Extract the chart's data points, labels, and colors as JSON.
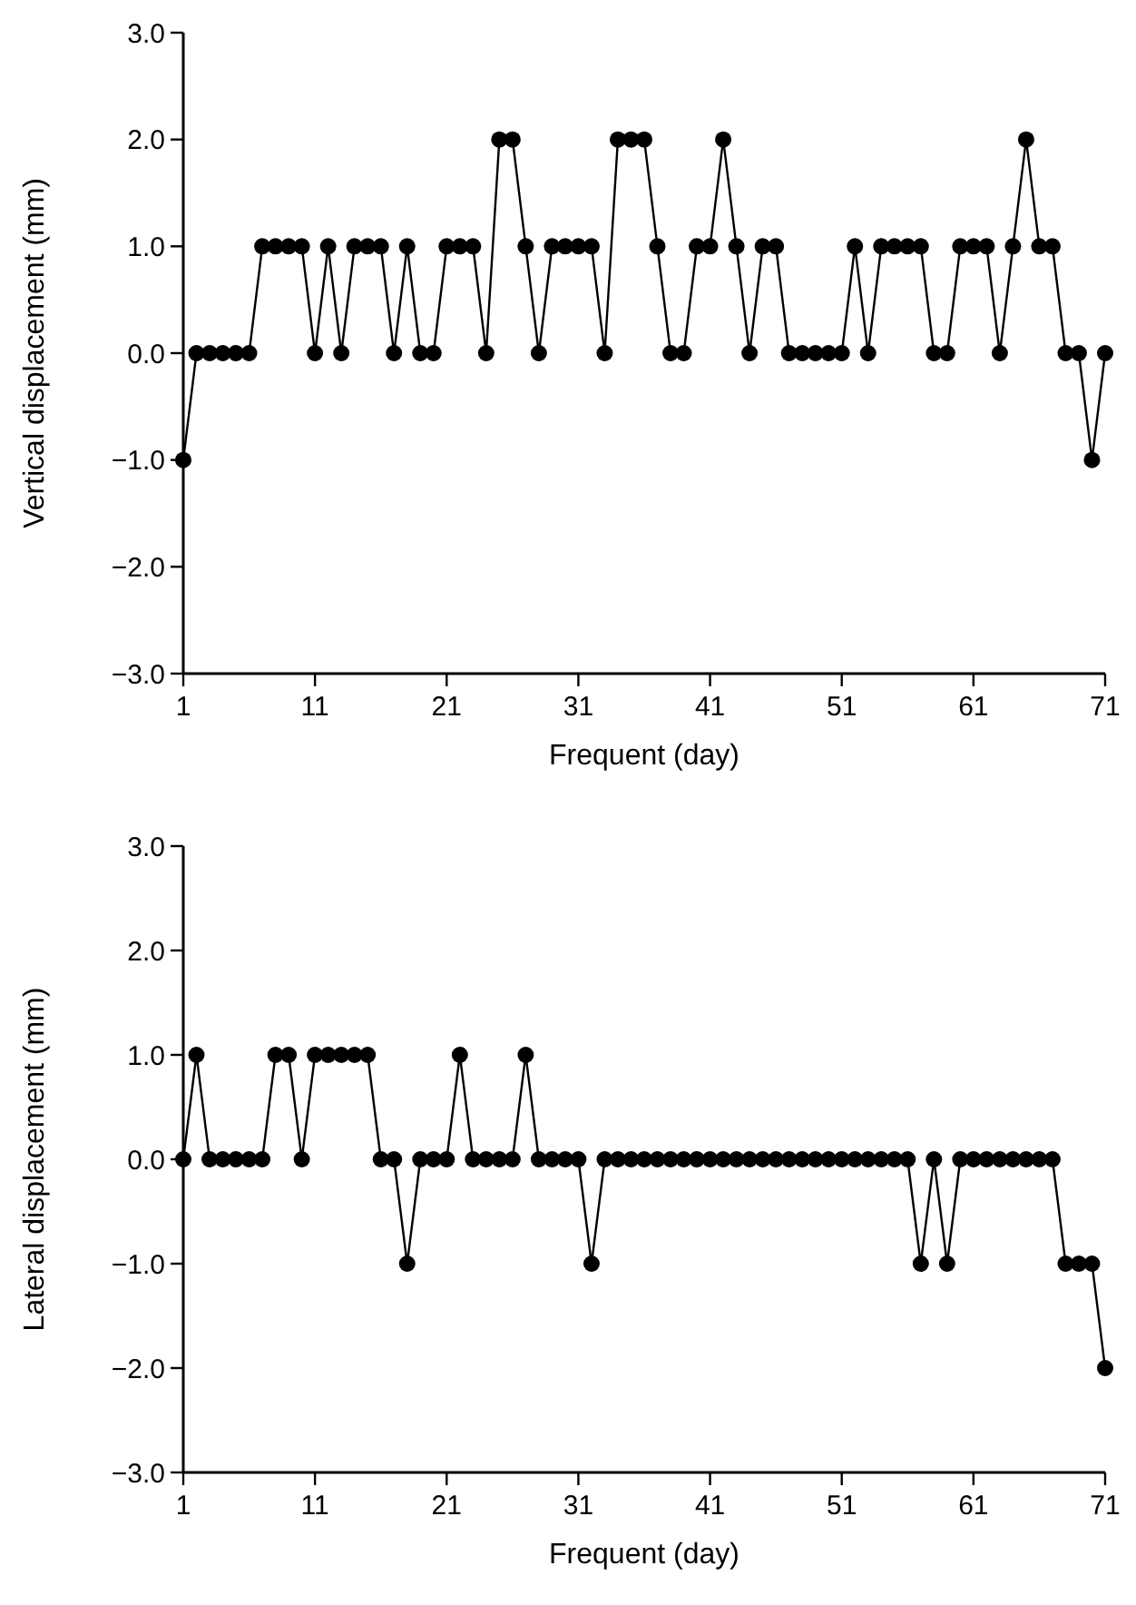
{
  "chart_data": [
    {
      "type": "line",
      "xlabel": "Frequent (day)",
      "ylabel": "Vertical displacement (mm)",
      "marker": "circle",
      "x": [
        1,
        2,
        3,
        4,
        5,
        6,
        7,
        8,
        9,
        10,
        11,
        12,
        13,
        14,
        15,
        16,
        17,
        18,
        19,
        20,
        21,
        22,
        23,
        24,
        25,
        26,
        27,
        28,
        29,
        30,
        31,
        32,
        33,
        34,
        35,
        36,
        37,
        38,
        39,
        40,
        41,
        42,
        43,
        44,
        45,
        46,
        47,
        48,
        49,
        50,
        51,
        52,
        53,
        54,
        55,
        56,
        57,
        58,
        59,
        60,
        61,
        62,
        63,
        64,
        65,
        66,
        67,
        68,
        69,
        70,
        71
      ],
      "series": [
        {
          "color": "#000000",
          "values": [
            -1,
            0,
            0,
            0,
            0,
            0,
            1,
            1,
            1,
            1,
            0,
            1,
            0,
            1,
            1,
            1,
            0,
            1,
            0,
            0,
            1,
            1,
            1,
            0,
            2,
            2,
            1,
            0,
            1,
            1,
            1,
            1,
            0,
            2,
            2,
            2,
            1,
            0,
            0,
            1,
            1,
            2,
            1,
            0,
            1,
            1,
            0,
            0,
            0,
            0,
            0,
            1,
            0,
            1,
            1,
            1,
            1,
            0,
            0,
            1,
            1,
            1,
            0,
            1,
            2,
            1,
            1,
            0,
            0,
            -1,
            0
          ]
        }
      ],
      "xlim": [
        1,
        71
      ],
      "xticks": [
        1,
        11,
        21,
        31,
        41,
        51,
        61,
        71
      ],
      "ylim": [
        -3,
        3
      ],
      "yticks": [
        {
          "value": 3,
          "label": "3.0"
        },
        {
          "value": 2,
          "label": "2.0"
        },
        {
          "value": 1,
          "label": "1.0"
        },
        {
          "value": 0,
          "label": "0.0"
        },
        {
          "value": -1,
          "label": "−1.0"
        },
        {
          "value": -2,
          "label": "−2.0"
        },
        {
          "value": -3,
          "label": "−3.0"
        }
      ]
    },
    {
      "type": "line",
      "xlabel": "Frequent (day)",
      "ylabel": "Lateral displacement (mm)",
      "marker": "circle",
      "x": [
        1,
        2,
        3,
        4,
        5,
        6,
        7,
        8,
        9,
        10,
        11,
        12,
        13,
        14,
        15,
        16,
        17,
        18,
        19,
        20,
        21,
        22,
        23,
        24,
        25,
        26,
        27,
        28,
        29,
        30,
        31,
        32,
        33,
        34,
        35,
        36,
        37,
        38,
        39,
        40,
        41,
        42,
        43,
        44,
        45,
        46,
        47,
        48,
        49,
        50,
        51,
        52,
        53,
        54,
        55,
        56,
        57,
        58,
        59,
        60,
        61,
        62,
        63,
        64,
        65,
        66,
        67,
        68,
        69,
        70,
        71
      ],
      "series": [
        {
          "color": "#000000",
          "values": [
            0,
            1,
            0,
            0,
            0,
            0,
            0,
            1,
            1,
            0,
            1,
            1,
            1,
            1,
            1,
            0,
            0,
            -1,
            0,
            0,
            0,
            1,
            0,
            0,
            0,
            0,
            1,
            0,
            0,
            0,
            0,
            -1,
            0,
            0,
            0,
            0,
            0,
            0,
            0,
            0,
            0,
            0,
            0,
            0,
            0,
            0,
            0,
            0,
            0,
            0,
            0,
            0,
            0,
            0,
            0,
            0,
            -1,
            0,
            -1,
            0,
            0,
            0,
            0,
            0,
            0,
            0,
            0,
            -1,
            -1,
            -1,
            -2
          ]
        }
      ],
      "xlim": [
        1,
        71
      ],
      "xticks": [
        1,
        11,
        21,
        31,
        41,
        51,
        61,
        71
      ],
      "ylim": [
        -3,
        3
      ],
      "yticks": [
        {
          "value": 3,
          "label": "3.0"
        },
        {
          "value": 2,
          "label": "2.0"
        },
        {
          "value": 1,
          "label": "1.0"
        },
        {
          "value": 0,
          "label": "0.0"
        },
        {
          "value": -1,
          "label": "−1.0"
        },
        {
          "value": -2,
          "label": "−2.0"
        },
        {
          "value": -3,
          "label": "−3.0"
        }
      ]
    }
  ]
}
